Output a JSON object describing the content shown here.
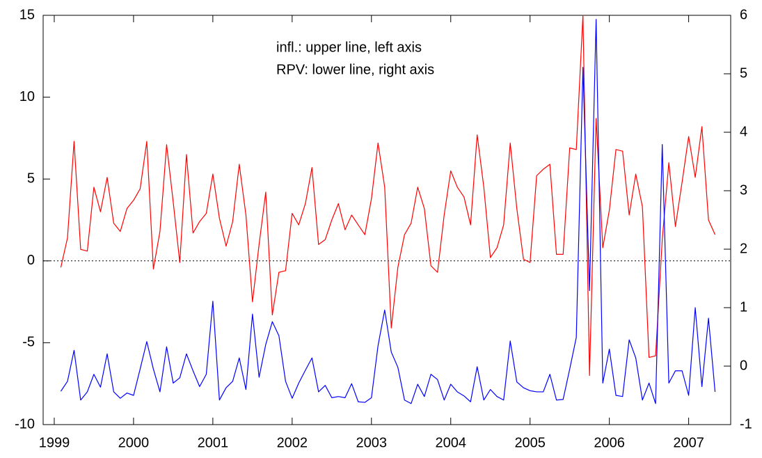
{
  "chart_data": {
    "type": "line",
    "annotations": [
      "infl.: upper line, left axis",
      "RPV: lower line, right axis"
    ],
    "x": [
      1999.083,
      1999.167,
      1999.25,
      1999.333,
      1999.417,
      1999.5,
      1999.583,
      1999.667,
      1999.75,
      1999.833,
      1999.917,
      2000,
      2000.083,
      2000.167,
      2000.25,
      2000.333,
      2000.417,
      2000.5,
      2000.583,
      2000.667,
      2000.75,
      2000.833,
      2000.917,
      2001,
      2001.083,
      2001.167,
      2001.25,
      2001.333,
      2001.417,
      2001.5,
      2001.583,
      2001.667,
      2001.75,
      2001.833,
      2001.917,
      2002,
      2002.083,
      2002.167,
      2002.25,
      2002.333,
      2002.417,
      2002.5,
      2002.583,
      2002.667,
      2002.75,
      2002.833,
      2002.917,
      2003,
      2003.083,
      2003.167,
      2003.25,
      2003.333,
      2003.417,
      2003.5,
      2003.583,
      2003.667,
      2003.75,
      2003.833,
      2003.917,
      2004,
      2004.083,
      2004.167,
      2004.25,
      2004.333,
      2004.417,
      2004.5,
      2004.583,
      2004.667,
      2004.75,
      2004.833,
      2004.917,
      2005,
      2005.083,
      2005.167,
      2005.25,
      2005.333,
      2005.417,
      2005.5,
      2005.583,
      2005.667,
      2005.75,
      2005.833,
      2005.917,
      2006,
      2006.083,
      2006.167,
      2006.25,
      2006.333,
      2006.417,
      2006.5,
      2006.583,
      2006.667,
      2006.75,
      2006.833,
      2006.917,
      2007,
      2007.083,
      2007.167,
      2007.25,
      2007.333
    ],
    "series": [
      {
        "color": "#ff0000",
        "axis": "y",
        "values": [
          -0.4,
          1.4,
          7.3,
          0.7,
          0.6,
          4.5,
          3.0,
          5.1,
          2.3,
          1.8,
          3.2,
          3.7,
          4.4,
          7.3,
          -0.5,
          1.8,
          7.1,
          3.6,
          -0.1,
          6.5,
          1.7,
          2.4,
          2.9,
          5.3,
          2.6,
          0.9,
          2.4,
          5.9,
          2.8,
          -2.5,
          1.0,
          4.2,
          -3.3,
          -0.7,
          -0.6,
          2.9,
          2.2,
          3.5,
          5.7,
          1.0,
          1.3,
          2.5,
          3.5,
          1.9,
          2.8,
          2.2,
          1.6,
          3.8,
          7.2,
          4.5,
          -4.1,
          -0.4,
          1.6,
          2.3,
          4.5,
          3.2,
          -0.3,
          -0.7,
          2.8,
          5.5,
          4.5,
          3.9,
          2.2,
          7.7,
          4.5,
          0.2,
          0.8,
          2.2,
          7.2,
          3.2,
          0.1,
          -0.1,
          5.2,
          5.6,
          5.9,
          0.4,
          0.4,
          6.9,
          6.8,
          15,
          -7.0,
          8.7,
          0.8,
          3.1,
          6.8,
          6.7,
          2.8,
          5.3,
          3.3,
          -5.9,
          -5.8,
          1.3,
          6.0,
          2.1,
          4.8,
          7.6,
          5.1,
          8.2,
          2.5,
          1.6
        ]
      },
      {
        "color": "#0000ff",
        "axis": "y2",
        "values": [
          -0.43,
          -0.26,
          0.27,
          -0.58,
          -0.44,
          -0.14,
          -0.36,
          0.21,
          -0.44,
          -0.55,
          -0.46,
          -0.5,
          -0.05,
          0.42,
          -0.05,
          -0.44,
          0.33,
          -0.29,
          -0.2,
          0.21,
          -0.08,
          -0.35,
          -0.14,
          1.11,
          -0.58,
          -0.37,
          -0.26,
          0.14,
          -0.4,
          0.89,
          -0.19,
          0.37,
          0.76,
          0.52,
          -0.26,
          -0.55,
          -0.29,
          -0.07,
          0.14,
          -0.44,
          -0.33,
          -0.54,
          -0.52,
          -0.54,
          -0.3,
          -0.61,
          -0.62,
          -0.54,
          0.35,
          0.96,
          0.24,
          -0.02,
          -0.58,
          -0.64,
          -0.31,
          -0.52,
          -0.14,
          -0.23,
          -0.58,
          -0.31,
          -0.44,
          -0.51,
          -0.61,
          -0.01,
          -0.58,
          -0.4,
          -0.52,
          -0.58,
          0.43,
          -0.27,
          -0.37,
          -0.42,
          -0.44,
          -0.44,
          -0.14,
          -0.58,
          -0.57,
          -0.05,
          0.49,
          5.11,
          1.29,
          5.93,
          -0.29,
          0.29,
          -0.5,
          -0.52,
          0.45,
          0.14,
          -0.58,
          -0.29,
          -0.64,
          3.79,
          -0.29,
          -0.08,
          -0.08,
          -0.5,
          1.0,
          -0.35,
          0.82,
          -0.44
        ]
      }
    ],
    "xlim": [
      1998.86,
      2007.53
    ],
    "xticks": [
      1999,
      2000,
      2001,
      2002,
      2003,
      2004,
      2005,
      2006,
      2007
    ],
    "ylim": [
      -10,
      15
    ],
    "yticks": [
      -10,
      -5,
      0,
      5,
      10,
      15
    ],
    "y2lim": [
      -1,
      6
    ],
    "y2ticks": [
      -1,
      0,
      1,
      2,
      3,
      4,
      5,
      6
    ],
    "zero_line": true
  }
}
